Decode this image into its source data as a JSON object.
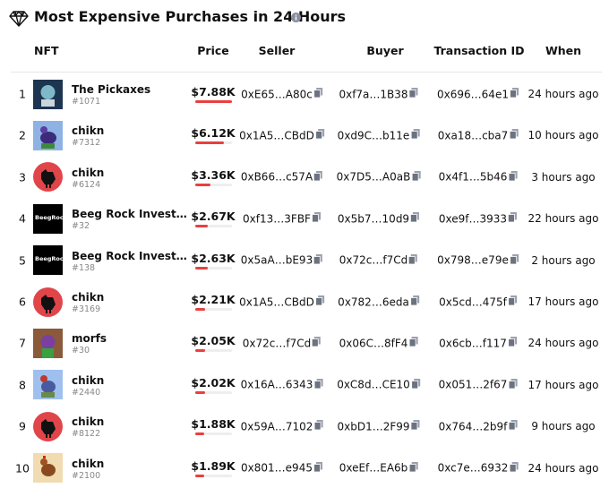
{
  "header": {
    "title": "Most Expensive Purchases in 24 Hours"
  },
  "table": {
    "columns": [
      "NFT",
      "Price",
      "Seller",
      "Buyer",
      "Transaction ID",
      "When"
    ],
    "rows": [
      {
        "rank": "1",
        "name": "The Pickaxes",
        "id": "#1071",
        "price": "$7.88K",
        "seller": "0xE65…A80c",
        "buyer": "0xf7a…1B38",
        "tx": "0x696…64e1",
        "when": "24 hours ago"
      },
      {
        "rank": "2",
        "name": "chikn",
        "id": "#7312",
        "price": "$6.12K",
        "seller": "0x1A5…CBdD",
        "buyer": "0xd9C…b11e",
        "tx": "0xa18…cba7",
        "when": "10 hours ago"
      },
      {
        "rank": "3",
        "name": "chikn",
        "id": "#6124",
        "price": "$3.36K",
        "seller": "0xB66…c57A",
        "buyer": "0x7D5…A0aB",
        "tx": "0x4f1…5b46",
        "when": "3 hours ago"
      },
      {
        "rank": "4",
        "name": "Beeg Rock Invest…",
        "id": "#32",
        "avatar_label": "BeegRock",
        "price": "$2.67K",
        "seller": "0xf13…3FBF",
        "buyer": "0x5b7…10d9",
        "tx": "0xe9f…3933",
        "when": "22 hours ago"
      },
      {
        "rank": "5",
        "name": "Beeg Rock Invest…",
        "id": "#138",
        "avatar_label": "BeegRock",
        "price": "$2.63K",
        "seller": "0x5aA…bE93",
        "buyer": "0x72c…f7Cd",
        "tx": "0x798…e79e",
        "when": "2 hours ago"
      },
      {
        "rank": "6",
        "name": "chikn",
        "id": "#3169",
        "price": "$2.21K",
        "seller": "0x1A5…CBdD",
        "buyer": "0x782…6eda",
        "tx": "0x5cd…475f",
        "when": "17 hours ago"
      },
      {
        "rank": "7",
        "name": "morfs",
        "id": "#30",
        "price": "$2.05K",
        "seller": "0x72c…f7Cd",
        "buyer": "0x06C…8fF4",
        "tx": "0x6cb…f117",
        "when": "24 hours ago"
      },
      {
        "rank": "8",
        "name": "chikn",
        "id": "#2440",
        "price": "$2.02K",
        "seller": "0x16A…6343",
        "buyer": "0xC8d…CE10",
        "tx": "0x051…2f67",
        "when": "17 hours ago"
      },
      {
        "rank": "9",
        "name": "chikn",
        "id": "#8122",
        "price": "$1.88K",
        "seller": "0x59A…7102",
        "buyer": "0xbD1…2F99",
        "tx": "0x764…2b9f",
        "when": "9 hours ago"
      },
      {
        "rank": "10",
        "name": "chikn",
        "id": "#2100",
        "price": "$1.89K",
        "seller": "0x801…e945",
        "buyer": "0xeEf…EA6b",
        "tx": "0xc7e…6932",
        "when": "24 hours ago"
      }
    ]
  }
}
